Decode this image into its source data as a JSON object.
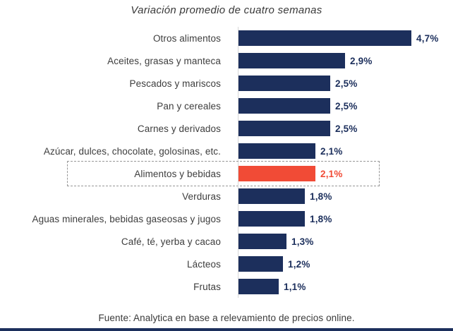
{
  "title": "Variación promedio de cuatro semanas",
  "source": "Fuente: Analytica en base a relevamiento de precios online.",
  "chart_data": {
    "type": "bar",
    "orientation": "horizontal",
    "title": "Variación promedio de cuatro semanas",
    "categories": [
      "Otros alimentos",
      "Aceites, grasas y manteca",
      "Pescados y mariscos",
      "Pan y cereales",
      "Carnes y derivados",
      "Azúcar, dulces, chocolate, golosinas, etc.",
      "Alimentos y bebidas",
      "Verduras",
      "Aguas minerales, bebidas gaseosas y jugos",
      "Café, té, yerba y cacao",
      "Lácteos",
      "Frutas"
    ],
    "values": [
      4.7,
      2.9,
      2.5,
      2.5,
      2.5,
      2.1,
      2.1,
      1.8,
      1.8,
      1.3,
      1.2,
      1.1
    ],
    "value_labels": [
      "4,7%",
      "2,9%",
      "2,5%",
      "2,5%",
      "2,5%",
      "2,1%",
      "2,1%",
      "1,8%",
      "1,8%",
      "1,3%",
      "1,2%",
      "1,1%"
    ],
    "highlight_index": 6,
    "xlim": [
      0,
      5
    ],
    "grid": false,
    "legend": "none",
    "xlabel": "",
    "ylabel": "",
    "colors": {
      "bar": "#1c2f5c",
      "highlight_bar": "#f14b36",
      "value_text": "#1c2f5c",
      "highlight_value_text": "#f14b36",
      "label_text": "#3d3d3d",
      "axis_line": "#d8d8d8",
      "highlight_border": "#979797",
      "bottom_rule": "#1c2f5c"
    }
  }
}
